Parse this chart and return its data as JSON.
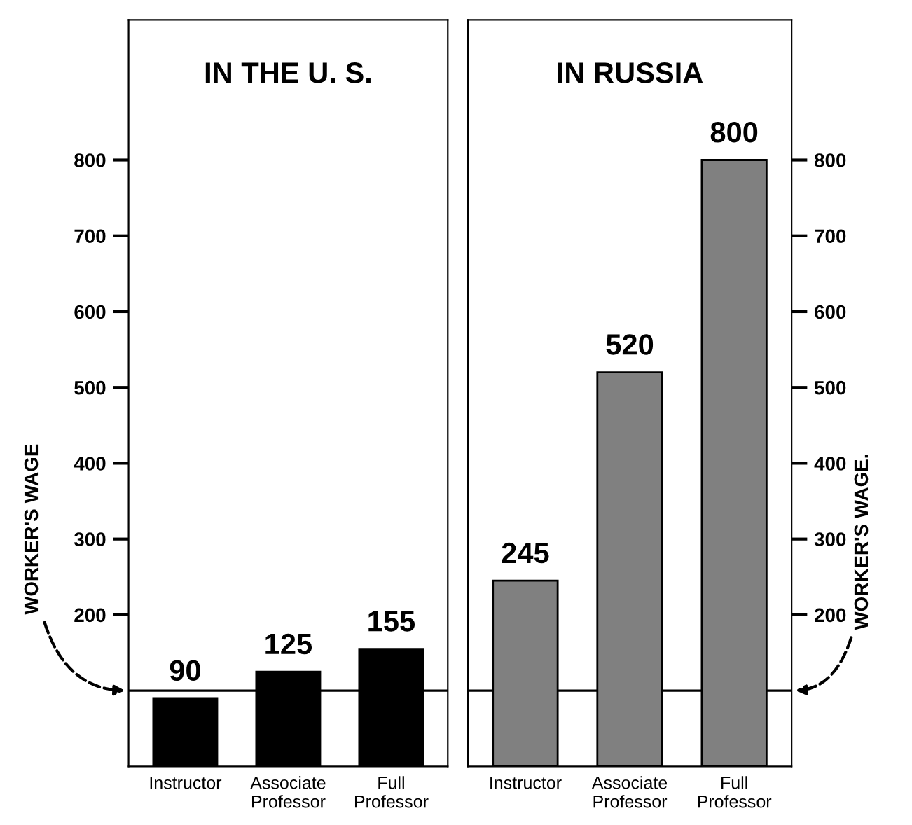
{
  "chart_data": [
    {
      "type": "bar",
      "title": "IN THE U. S.",
      "categories": [
        "Instructor",
        "Associate\nProfessor",
        "Full\nProfessor"
      ],
      "series": [
        {
          "color": "#000000",
          "values": [
            90,
            125,
            155
          ]
        }
      ],
      "ylim": [
        0,
        985
      ],
      "yticks": [
        200,
        300,
        400,
        500,
        600,
        700,
        800
      ],
      "data_labels": true,
      "grid": false,
      "legend": false,
      "ref_lines": [
        {
          "axis": "y",
          "value": 100,
          "label": "WORKER'S WAGE",
          "color": "#000000"
        }
      ]
    },
    {
      "type": "bar",
      "title": "IN RUSSIA",
      "categories": [
        "Instructor",
        "Associate\nProfessor",
        "Full\nProfessor"
      ],
      "series": [
        {
          "color": "#808080",
          "values": [
            245,
            520,
            800
          ]
        }
      ],
      "ylim": [
        0,
        985
      ],
      "yticks": [
        200,
        300,
        400,
        500,
        600,
        700,
        800
      ],
      "data_labels": true,
      "grid": false,
      "legend": false,
      "ref_lines": [
        {
          "axis": "y",
          "value": 100,
          "label": "WORKER'S WAGE.",
          "color": "#000000"
        }
      ]
    }
  ]
}
